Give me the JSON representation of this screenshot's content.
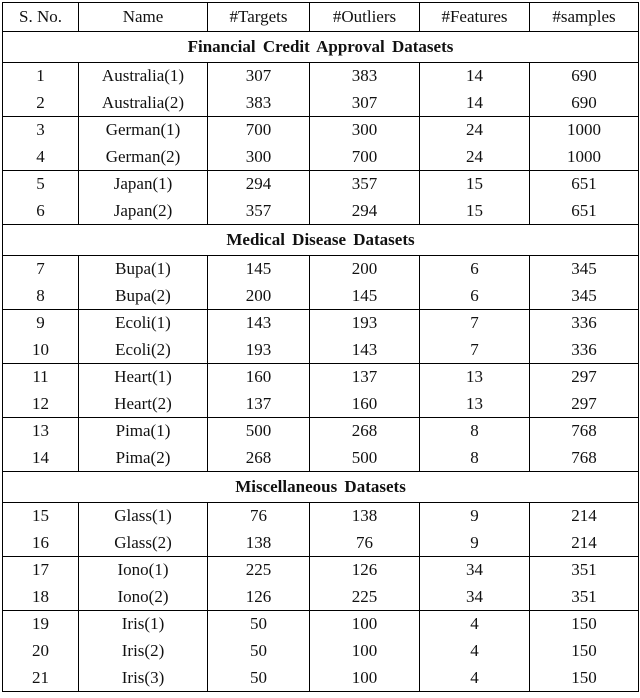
{
  "colors": {
    "background": "#ffffff",
    "border": "#000000",
    "text": "#111111"
  },
  "table": {
    "columns": [
      "S. No.",
      "Name",
      "#Targets",
      "#Outliers",
      "#Features",
      "#samples"
    ],
    "column_keys": [
      "sno",
      "name",
      "targets",
      "outliers",
      "features",
      "samples"
    ],
    "sections": [
      {
        "title": "Financial Credit Approval Datasets",
        "groups": [
          {
            "rows": [
              [
                "1",
                "Australia(1)",
                "307",
                "383",
                "14",
                "690"
              ],
              [
                "2",
                "Australia(2)",
                "383",
                "307",
                "14",
                "690"
              ]
            ]
          },
          {
            "rows": [
              [
                "3",
                "German(1)",
                "700",
                "300",
                "24",
                "1000"
              ],
              [
                "4",
                "German(2)",
                "300",
                "700",
                "24",
                "1000"
              ]
            ]
          },
          {
            "rows": [
              [
                "5",
                "Japan(1)",
                "294",
                "357",
                "15",
                "651"
              ],
              [
                "6",
                "Japan(2)",
                "357",
                "294",
                "15",
                "651"
              ]
            ]
          }
        ]
      },
      {
        "title": "Medical Disease Datasets",
        "groups": [
          {
            "rows": [
              [
                "7",
                "Bupa(1)",
                "145",
                "200",
                "6",
                "345"
              ],
              [
                "8",
                "Bupa(2)",
                "200",
                "145",
                "6",
                "345"
              ]
            ]
          },
          {
            "rows": [
              [
                "9",
                "Ecoli(1)",
                "143",
                "193",
                "7",
                "336"
              ],
              [
                "10",
                "Ecoli(2)",
                "193",
                "143",
                "7",
                "336"
              ]
            ]
          },
          {
            "rows": [
              [
                "11",
                "Heart(1)",
                "160",
                "137",
                "13",
                "297"
              ],
              [
                "12",
                "Heart(2)",
                "137",
                "160",
                "13",
                "297"
              ]
            ]
          },
          {
            "rows": [
              [
                "13",
                "Pima(1)",
                "500",
                "268",
                "8",
                "768"
              ],
              [
                "14",
                "Pima(2)",
                "268",
                "500",
                "8",
                "768"
              ]
            ]
          }
        ]
      },
      {
        "title": "Miscellaneous Datasets",
        "groups": [
          {
            "rows": [
              [
                "15",
                "Glass(1)",
                "76",
                "138",
                "9",
                "214"
              ],
              [
                "16",
                "Glass(2)",
                "138",
                "76",
                "9",
                "214"
              ]
            ]
          },
          {
            "rows": [
              [
                "17",
                "Iono(1)",
                "225",
                "126",
                "34",
                "351"
              ],
              [
                "18",
                "Iono(2)",
                "126",
                "225",
                "34",
                "351"
              ]
            ]
          },
          {
            "rows": [
              [
                "19",
                "Iris(1)",
                "50",
                "100",
                "4",
                "150"
              ],
              [
                "20",
                "Iris(2)",
                "50",
                "100",
                "4",
                "150"
              ],
              [
                "21",
                "Iris(3)",
                "50",
                "100",
                "4",
                "150"
              ]
            ]
          }
        ]
      }
    ]
  }
}
